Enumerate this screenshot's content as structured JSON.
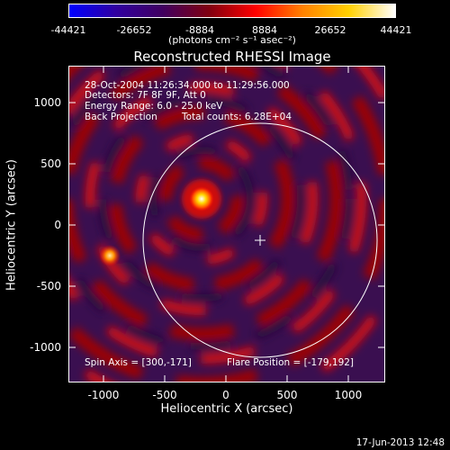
{
  "colorbar": {
    "ticks": [
      "-44421",
      "-26652",
      "-8884",
      "8884",
      "26652",
      "44421"
    ],
    "unit_label": "(photons cm⁻² s⁻¹ asec⁻²)",
    "colormap_stops": [
      "#0000ff",
      "#3000a0",
      "#400060",
      "#800010",
      "#ff0000",
      "#ff8000",
      "#ffd000",
      "#ffffff"
    ]
  },
  "title": "Reconstructed RHESSI Image",
  "info_lines": {
    "time": "28-Oct-2004 11:26:34.000 to 11:29:56.000",
    "detectors": "Detectors: 7F 8F 9F, Att 0",
    "energy": "Energy Range: 6.0 - 25.0 keV",
    "method": "Back Projection",
    "counts": "Total counts: 6.28E+04"
  },
  "footer_lines": {
    "spin_axis": "Spin Axis = [300,-171]",
    "flare_position": "Flare Position = [-179,192]"
  },
  "axes": {
    "xlabel": "Heliocentric X (arcsec)",
    "ylabel": "Heliocentric Y (arcsec)",
    "xticks": [
      "-1000",
      "-500",
      "0",
      "500",
      "1000"
    ],
    "yticks": [
      "1000",
      "500",
      "0",
      "-500",
      "-1000"
    ]
  },
  "timestamp": "17-Jun-2013 12:48"
}
